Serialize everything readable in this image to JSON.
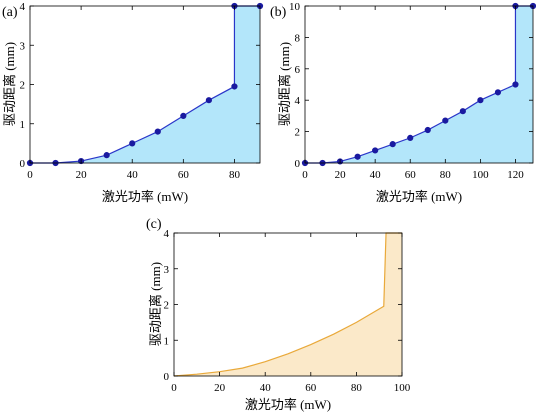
{
  "chart_data": [
    {
      "type": "area",
      "panel_label": "(a)",
      "xlabel": "激光功率 (mW)",
      "ylabel": "驱动距离 (mm)",
      "xlim": [
        0,
        90
      ],
      "ylim": [
        0,
        4
      ],
      "xticks": [
        0,
        20,
        40,
        60,
        80
      ],
      "yticks": [
        0,
        1,
        2,
        3,
        4
      ],
      "fill_color": "#b3e6fa",
      "line_color": "#2a36c9",
      "marker_color": "#1a1aa0",
      "markers": true,
      "x": [
        0,
        10,
        20,
        30,
        40,
        50,
        60,
        70,
        80,
        80,
        90
      ],
      "y": [
        0,
        0,
        0.05,
        0.2,
        0.5,
        0.8,
        1.2,
        1.6,
        1.95,
        4,
        4
      ]
    },
    {
      "type": "area",
      "panel_label": "(b)",
      "xlabel": "激光功率 (mW)",
      "ylabel": "驱动距离 (mm)",
      "xlim": [
        0,
        130
      ],
      "ylim": [
        0,
        10
      ],
      "xticks": [
        0,
        20,
        40,
        60,
        80,
        100,
        120
      ],
      "yticks": [
        0,
        2,
        4,
        6,
        8,
        10
      ],
      "fill_color": "#b3e6fa",
      "line_color": "#2a36c9",
      "marker_color": "#1a1aa0",
      "markers": true,
      "x": [
        0,
        10,
        20,
        30,
        40,
        50,
        60,
        70,
        80,
        90,
        100,
        110,
        120,
        120,
        130
      ],
      "y": [
        0,
        0,
        0.1,
        0.4,
        0.8,
        1.2,
        1.6,
        2.1,
        2.7,
        3.3,
        4.0,
        4.5,
        5.0,
        10,
        10
      ]
    },
    {
      "type": "area",
      "panel_label": "(c)",
      "xlabel": "激光功率 (mW)",
      "ylabel": "驱动距离 (mm)",
      "xlim": [
        0,
        100
      ],
      "ylim": [
        0,
        4
      ],
      "xticks": [
        0,
        20,
        40,
        60,
        80,
        100
      ],
      "yticks": [
        0,
        1,
        2,
        3,
        4
      ],
      "fill_color": "#fbe9c9",
      "line_color": "#e9a93a",
      "markers": false,
      "x": [
        0,
        10,
        20,
        30,
        40,
        50,
        60,
        70,
        80,
        92,
        93,
        100
      ],
      "y": [
        0,
        0.05,
        0.12,
        0.22,
        0.4,
        0.62,
        0.88,
        1.17,
        1.5,
        1.95,
        4,
        4
      ]
    }
  ]
}
